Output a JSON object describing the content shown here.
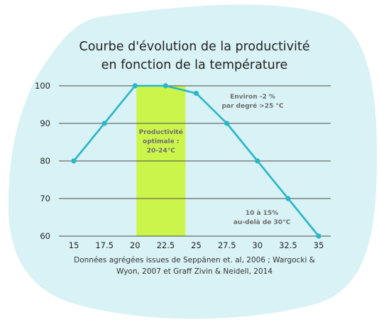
{
  "colors": {
    "blob": "#d8f2f5",
    "line": "#29b6c6",
    "band": "#ccf54b",
    "grid": "#4a4a4a",
    "text": "#222222",
    "note": "#6e6e6e"
  },
  "chart_data": {
    "type": "line",
    "title_lines": [
      "Courbe d'évolution de la productivité",
      "en fonction de la température"
    ],
    "x": [
      15,
      17.5,
      20,
      22.5,
      25,
      27.5,
      30,
      32.5,
      35
    ],
    "x_tick_labels": [
      "15",
      "17.5",
      "20",
      "22.5",
      "25",
      "27.5",
      "30",
      "32.5",
      "35"
    ],
    "values": [
      80,
      90,
      100,
      100,
      98,
      90,
      80,
      70,
      60
    ],
    "y_ticks": [
      60,
      70,
      80,
      90,
      100
    ],
    "ylim": [
      60,
      100
    ],
    "grid": "horizontal",
    "highlight_band": {
      "x_start": 20,
      "x_end": 24,
      "label_lines": [
        "Productivité",
        "optimale :",
        "20-24°C"
      ]
    },
    "annotations": [
      {
        "lines": [
          "Environ -2 %",
          "par degré >25 °C"
        ]
      },
      {
        "lines": [
          "10 à 15%",
          "au-delà de 30°C"
        ]
      }
    ],
    "source_lines": [
      "Données agrégées issues de Seppänen et. al, 2006 ; Wargocki &",
      "Wyon, 2007 et Graff Zivin & Neidell, 2014"
    ]
  }
}
